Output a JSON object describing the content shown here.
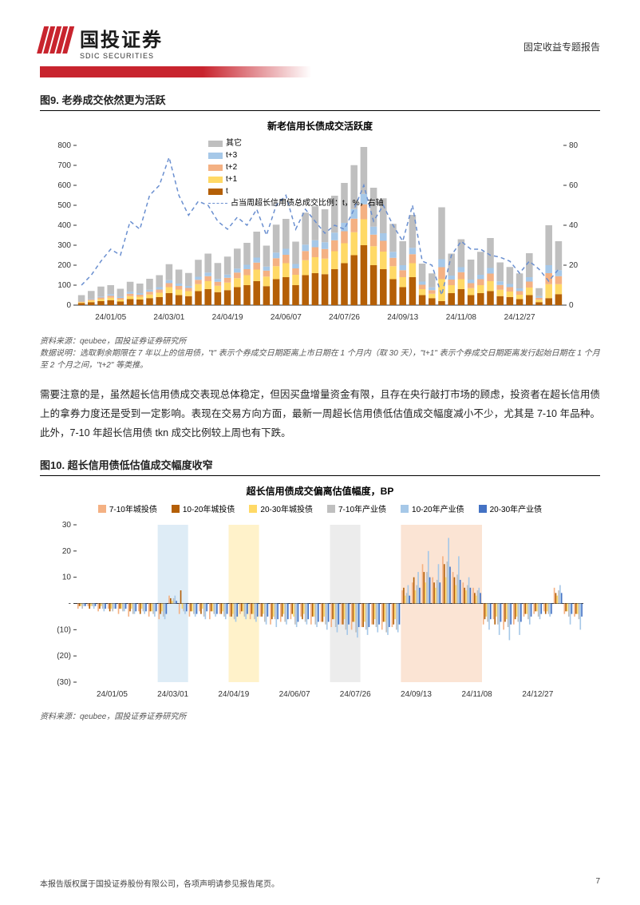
{
  "header": {
    "logo_cn": "国投证券",
    "logo_en": "SDIC SECURITIES",
    "right_text": "固定收益专题报告"
  },
  "figure9": {
    "title": "图9. 老券成交依然更为活跃",
    "chart_title": "新老信用长债成交活跃度",
    "legend": {
      "other": "其它",
      "t3": "t+3",
      "t2": "t+2",
      "t1": "t+1",
      "t": "t",
      "ratio": "占当周超长信用债总成交比例：t，%，右轴"
    },
    "colors": {
      "other": "#bfbfbf",
      "t3": "#a6c8e8",
      "t2": "#f4b183",
      "t1": "#ffd966",
      "t": "#b45f06",
      "ratio": "#6a8fd0",
      "axis": "#333333",
      "grid": "#e0e0e0",
      "bg": "#ffffff"
    },
    "y_left": {
      "min": 0,
      "max": 800,
      "step": 100
    },
    "y_right": {
      "min": 0,
      "max": 80,
      "step": 20
    },
    "x_labels": [
      "24/01/05",
      "24/03/01",
      "24/04/19",
      "24/06/07",
      "24/07/26",
      "24/09/13",
      "24/11/08",
      "24/12/27"
    ],
    "bars": [
      {
        "t": 10,
        "t1": 5,
        "t2": 3,
        "t3": 2,
        "other": 30
      },
      {
        "t": 15,
        "t1": 8,
        "t2": 5,
        "t3": 3,
        "other": 40
      },
      {
        "t": 20,
        "t1": 10,
        "t2": 8,
        "t3": 5,
        "other": 50
      },
      {
        "t": 25,
        "t1": 12,
        "t2": 10,
        "t3": 8,
        "other": 45
      },
      {
        "t": 18,
        "t1": 10,
        "t2": 8,
        "t3": 6,
        "other": 40
      },
      {
        "t": 30,
        "t1": 15,
        "t2": 12,
        "t3": 10,
        "other": 50
      },
      {
        "t": 28,
        "t1": 14,
        "t2": 10,
        "t3": 8,
        "other": 48
      },
      {
        "t": 35,
        "t1": 18,
        "t2": 14,
        "t3": 10,
        "other": 55
      },
      {
        "t": 40,
        "t1": 22,
        "t2": 16,
        "t3": 12,
        "other": 60
      },
      {
        "t": 60,
        "t1": 30,
        "t2": 20,
        "t3": 15,
        "other": 80
      },
      {
        "t": 50,
        "t1": 28,
        "t2": 18,
        "t3": 12,
        "other": 70
      },
      {
        "t": 45,
        "t1": 25,
        "t2": 16,
        "t3": 10,
        "other": 65
      },
      {
        "t": 70,
        "t1": 35,
        "t2": 22,
        "t3": 15,
        "other": 85
      },
      {
        "t": 80,
        "t1": 40,
        "t2": 25,
        "t3": 18,
        "other": 95
      },
      {
        "t": 65,
        "t1": 32,
        "t2": 20,
        "t3": 14,
        "other": 80
      },
      {
        "t": 75,
        "t1": 38,
        "t2": 24,
        "t3": 16,
        "other": 90
      },
      {
        "t": 90,
        "t1": 45,
        "t2": 28,
        "t3": 20,
        "other": 100
      },
      {
        "t": 100,
        "t1": 50,
        "t2": 30,
        "t3": 22,
        "other": 110
      },
      {
        "t": 120,
        "t1": 58,
        "t2": 35,
        "t3": 25,
        "other": 130
      },
      {
        "t": 95,
        "t1": 48,
        "t2": 30,
        "t3": 20,
        "other": 105
      },
      {
        "t": 130,
        "t1": 65,
        "t2": 40,
        "t3": 28,
        "other": 140
      },
      {
        "t": 140,
        "t1": 70,
        "t2": 42,
        "t3": 30,
        "other": 150
      },
      {
        "t": 100,
        "t1": 52,
        "t2": 32,
        "t3": 22,
        "other": 112
      },
      {
        "t": 150,
        "t1": 75,
        "t2": 46,
        "t3": 32,
        "other": 160
      },
      {
        "t": 160,
        "t1": 80,
        "t2": 50,
        "t3": 35,
        "other": 170
      },
      {
        "t": 155,
        "t1": 78,
        "t2": 48,
        "t3": 34,
        "other": 165
      },
      {
        "t": 180,
        "t1": 90,
        "t2": 55,
        "t3": 38,
        "other": 185
      },
      {
        "t": 210,
        "t1": 100,
        "t2": 60,
        "t3": 42,
        "other": 200
      },
      {
        "t": 250,
        "t1": 115,
        "t2": 68,
        "t3": 48,
        "other": 220
      },
      {
        "t": 300,
        "t1": 130,
        "t2": 75,
        "t3": 52,
        "other": 235
      },
      {
        "t": 200,
        "t1": 95,
        "t2": 58,
        "t3": 40,
        "other": 195
      },
      {
        "t": 180,
        "t1": 88,
        "t2": 54,
        "t3": 38,
        "other": 175
      },
      {
        "t": 130,
        "t1": 65,
        "t2": 42,
        "t3": 30,
        "other": 140
      },
      {
        "t": 90,
        "t1": 50,
        "t2": 35,
        "t3": 25,
        "other": 120
      },
      {
        "t": 140,
        "t1": 70,
        "t2": 45,
        "t3": 32,
        "other": 165
      },
      {
        "t": 50,
        "t1": 30,
        "t2": 22,
        "t3": 16,
        "other": 90
      },
      {
        "t": 35,
        "t1": 22,
        "t2": 18,
        "t3": 14,
        "other": 70
      },
      {
        "t": 20,
        "t1": 110,
        "t2": 60,
        "t3": 40,
        "other": 260
      },
      {
        "t": 60,
        "t1": 40,
        "t2": 28,
        "t3": 20,
        "other": 110
      },
      {
        "t": 80,
        "t1": 50,
        "t2": 35,
        "t3": 25,
        "other": 140
      },
      {
        "t": 50,
        "t1": 35,
        "t2": 25,
        "t3": 18,
        "other": 100
      },
      {
        "t": 60,
        "t1": 40,
        "t2": 30,
        "t3": 22,
        "other": 115
      },
      {
        "t": 70,
        "t1": 50,
        "t2": 38,
        "t3": 28,
        "other": 150
      },
      {
        "t": 45,
        "t1": 32,
        "t2": 24,
        "t3": 18,
        "other": 95
      },
      {
        "t": 40,
        "t1": 28,
        "t2": 22,
        "t3": 16,
        "other": 85
      },
      {
        "t": 30,
        "t1": 22,
        "t2": 18,
        "t3": 14,
        "other": 75
      },
      {
        "t": 50,
        "t1": 38,
        "t2": 30,
        "t3": 22,
        "other": 120
      },
      {
        "t": 15,
        "t1": 12,
        "t2": 10,
        "t3": 8,
        "other": 40
      },
      {
        "t": 35,
        "t1": 70,
        "t2": 55,
        "t3": 40,
        "other": 200
      },
      {
        "t": 55,
        "t1": 50,
        "t2": 40,
        "t3": 30,
        "other": 145
      }
    ],
    "ratio_line": [
      10,
      15,
      22,
      28,
      25,
      42,
      38,
      55,
      60,
      74,
      55,
      45,
      52,
      50,
      42,
      38,
      44,
      40,
      48,
      35,
      50,
      55,
      38,
      48,
      42,
      36,
      40,
      38,
      48,
      60,
      42,
      50,
      40,
      32,
      50,
      22,
      20,
      5,
      25,
      32,
      28,
      28,
      25,
      24,
      22,
      16,
      22,
      18,
      12,
      18
    ],
    "source": "资料来源：qeubee，国投证券证券研究所",
    "note": "数据说明：选取剩余期限在 7 年以上的信用债，\"t\" 表示个券成交日期距离上市日期在 1 个月内（取 30 天），\"t+1\" 表示个券成交日期距离发行起始日期在 1 个月至 2 个月之间，\"t+2\" 等类推。"
  },
  "body_para": "需要注意的是，虽然超长信用债成交表现总体稳定，但因买盘增量资金有限，且存在央行敲打市场的顾虑，投资者在超长信用债上的拿券力度还是受到一定影响。表现在交易方向方面，最新一周超长信用债低估值成交幅度减小不少，尤其是 7-10 年品种。此外，7-10 年超长信用债 tkn 成交比例较上周也有下跌。",
  "figure10": {
    "title": "图10. 超长信用债低估值成交幅度收窄",
    "chart_title": "超长信用债成交偏离估值幅度，BP",
    "legend": [
      {
        "label": "7-10年城投债",
        "color": "#f4b183"
      },
      {
        "label": "10-20年城投债",
        "color": "#b45f06"
      },
      {
        "label": "20-30年城投债",
        "color": "#ffd966"
      },
      {
        "label": "7-10年产业债",
        "color": "#bfbfbf"
      },
      {
        "label": "10-20年产业债",
        "color": "#a6c8e8"
      },
      {
        "label": "20-30年产业债",
        "color": "#4472c4"
      }
    ],
    "y": {
      "min": -30,
      "max": 30,
      "step": 10,
      "neg_format": true
    },
    "x_labels": [
      "24/01/05",
      "24/03/01",
      "24/04/19",
      "24/06/07",
      "24/07/26",
      "24/09/13",
      "24/11/08",
      "24/12/27"
    ],
    "highlights": [
      {
        "start": 8,
        "end": 11,
        "color": "rgba(160,200,230,0.35)"
      },
      {
        "start": 15,
        "end": 18,
        "color": "rgba(255,217,102,0.35)"
      },
      {
        "start": 25,
        "end": 28,
        "color": "rgba(200,200,200,0.35)"
      },
      {
        "start": 32,
        "end": 40,
        "color": "rgba(244,177,131,0.35)"
      }
    ],
    "series": [
      [
        -2,
        -1,
        -3,
        -2,
        -4,
        -5,
        -3,
        -5,
        -6,
        3,
        -4,
        -5,
        -3,
        -6,
        -4,
        -5,
        -4,
        -6,
        -5,
        -8,
        -7,
        -6,
        -5,
        -8,
        -7,
        -9,
        -8,
        -10,
        -9,
        -8,
        -10,
        -9,
        5,
        8,
        15,
        10,
        18,
        12,
        8,
        6,
        -8,
        -6,
        -10,
        -8,
        -5,
        -4,
        -3,
        6,
        -4,
        -5
      ],
      [
        -1,
        -2,
        -2,
        -3,
        -2,
        -3,
        -4,
        -3,
        -4,
        2,
        5,
        -3,
        -4,
        -3,
        -4,
        -5,
        -3,
        -4,
        -5,
        -6,
        -5,
        -4,
        -6,
        -5,
        -7,
        -6,
        -8,
        -7,
        -9,
        -8,
        -7,
        -8,
        6,
        10,
        12,
        8,
        15,
        10,
        6,
        4,
        -6,
        -8,
        -7,
        -6,
        -4,
        -3,
        -4,
        4,
        -3,
        -4
      ],
      [
        -1,
        -1,
        -1,
        -2,
        -2,
        -2,
        -2,
        -3,
        -3,
        1,
        -2,
        -3,
        -2,
        -3,
        -3,
        -4,
        -3,
        -4,
        -4,
        -5,
        -4,
        -5,
        -4,
        -5,
        -5,
        -6,
        -6,
        -7,
        -7,
        -6,
        -7,
        -6,
        3,
        5,
        8,
        6,
        10,
        7,
        5,
        3,
        -5,
        -5,
        -6,
        -5,
        -4,
        -3,
        -3,
        3,
        -3,
        -4
      ],
      [
        -2,
        -1,
        -2,
        -3,
        -3,
        -4,
        -3,
        -4,
        -5,
        2,
        -3,
        -4,
        -5,
        -4,
        -5,
        -6,
        -5,
        -6,
        -7,
        -6,
        -7,
        -8,
        -7,
        -8,
        -8,
        -9,
        -10,
        -11,
        -10,
        -9,
        -11,
        -10,
        4,
        7,
        12,
        9,
        16,
        11,
        7,
        5,
        -7,
        -8,
        -9,
        -7,
        -6,
        -5,
        -4,
        5,
        -5,
        -6
      ],
      [
        -1,
        -2,
        -3,
        -2,
        -3,
        -4,
        -4,
        -5,
        -6,
        3,
        -4,
        -5,
        -6,
        -5,
        -6,
        -7,
        -6,
        -7,
        -8,
        -9,
        -8,
        -9,
        -8,
        -9,
        -10,
        -11,
        -12,
        -13,
        -12,
        -11,
        -12,
        -11,
        7,
        12,
        20,
        15,
        25,
        18,
        10,
        6,
        -10,
        -12,
        -14,
        -12,
        -8,
        -6,
        -5,
        7,
        -8,
        -10
      ],
      [
        -1,
        -1,
        -2,
        -2,
        -2,
        -3,
        -3,
        -3,
        -4,
        1,
        -3,
        -4,
        -3,
        -4,
        -4,
        -5,
        -4,
        -5,
        -5,
        -6,
        -6,
        -7,
        -6,
        -7,
        -7,
        -8,
        -8,
        -9,
        -9,
        -8,
        -9,
        -8,
        3,
        6,
        10,
        8,
        14,
        9,
        6,
        4,
        -6,
        -7,
        -8,
        -7,
        -5,
        -4,
        -4,
        4,
        -4,
        -5
      ]
    ],
    "source": "资料来源：qeubee，国投证券证券研究所"
  },
  "footer": {
    "left": "本报告版权属于国投证券股份有限公司，各项声明请参见报告尾页。",
    "page": "7"
  }
}
